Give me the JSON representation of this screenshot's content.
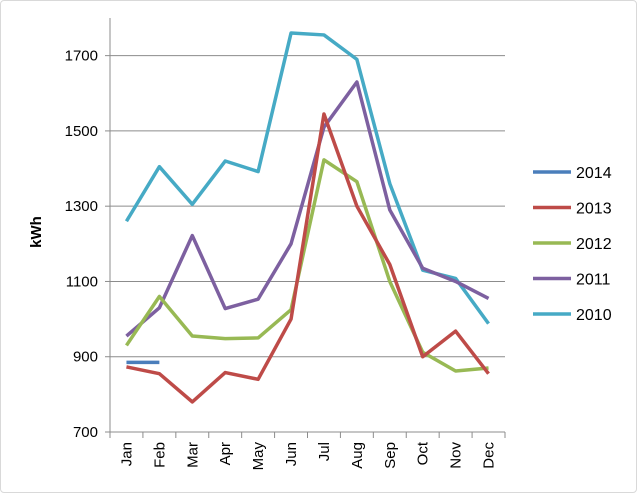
{
  "chart_data": {
    "type": "line",
    "title": "",
    "xlabel": "",
    "ylabel": "kWh",
    "ylim": [
      700,
      1800
    ],
    "yticks": [
      "700",
      "900",
      "1100",
      "1300",
      "1500",
      "1700"
    ],
    "ytick_values": [
      700,
      900,
      1100,
      1300,
      1500,
      1700
    ],
    "categories": [
      "Jan",
      "Feb",
      "Mar",
      "Apr",
      "May",
      "Jun",
      "Jul",
      "Aug",
      "Sep",
      "Oct",
      "Nov",
      "Dec"
    ],
    "grid": "horizontal",
    "legend_position": "right",
    "series": [
      {
        "name": "2014",
        "color": "#4a7ebb",
        "values": [
          885,
          885,
          null,
          null,
          null,
          null,
          null,
          null,
          null,
          null,
          null,
          null
        ]
      },
      {
        "name": "2013",
        "color": "#be4b48",
        "values": [
          873,
          855,
          780,
          858,
          840,
          1000,
          1545,
          1300,
          1145,
          900,
          968,
          855
        ]
      },
      {
        "name": "2012",
        "color": "#98b954",
        "values": [
          930,
          1060,
          955,
          948,
          950,
          1025,
          1423,
          1365,
          1100,
          912,
          862,
          870
        ]
      },
      {
        "name": "2011",
        "color": "#7d60a0",
        "values": [
          955,
          1030,
          1222,
          1028,
          1053,
          1200,
          1510,
          1630,
          1290,
          1135,
          1100,
          1055
        ]
      },
      {
        "name": "2010",
        "color": "#46aac5",
        "values": [
          1260,
          1405,
          1305,
          1420,
          1392,
          1760,
          1755,
          1690,
          1360,
          1130,
          1108,
          988
        ]
      }
    ]
  }
}
